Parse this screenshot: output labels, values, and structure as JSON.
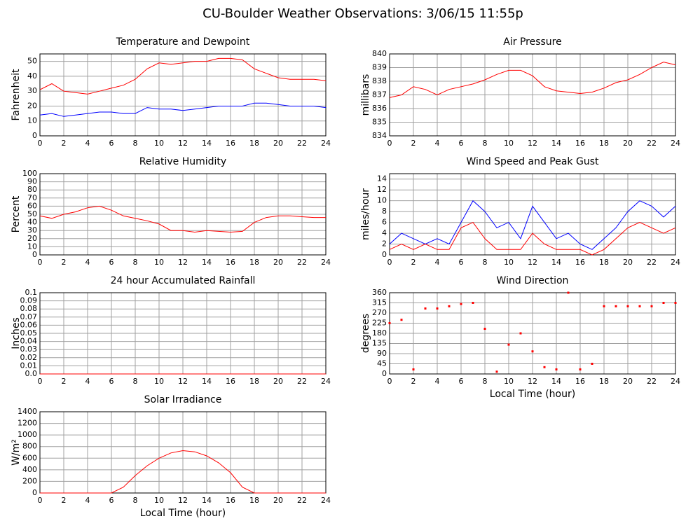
{
  "title": "CU-Boulder Weather Observations: 3/06/15 11:55p",
  "chart_data": [
    {
      "type": "line",
      "title": "Temperature and Dewpoint",
      "ylabel": "Fahrenheit",
      "x": [
        0,
        1,
        2,
        3,
        4,
        5,
        6,
        7,
        8,
        9,
        10,
        11,
        12,
        13,
        14,
        15,
        16,
        17,
        18,
        19,
        20,
        21,
        22,
        23,
        24
      ],
      "xlim": [
        0,
        24
      ],
      "xticks": [
        0,
        2,
        4,
        6,
        8,
        10,
        12,
        14,
        16,
        18,
        20,
        22,
        24
      ],
      "ylim": [
        0,
        55
      ],
      "yticks": [
        0,
        10,
        20,
        30,
        40,
        50
      ],
      "grid": true,
      "series": [
        {
          "name": "Temperature",
          "color": "#ff0000",
          "values": [
            31,
            35,
            30,
            29,
            28,
            30,
            32,
            34,
            38,
            45,
            49,
            48,
            49,
            50,
            50,
            52,
            52,
            51,
            45,
            42,
            39,
            38,
            38,
            38,
            37
          ]
        },
        {
          "name": "Dewpoint",
          "color": "#0000ff",
          "values": [
            14,
            15,
            13,
            14,
            15,
            16,
            16,
            15,
            15,
            19,
            18,
            18,
            17,
            18,
            19,
            20,
            20,
            20,
            22,
            22,
            21,
            20,
            20,
            20,
            19
          ]
        }
      ]
    },
    {
      "type": "line",
      "title": "Air Pressure",
      "ylabel": "millibars",
      "x": [
        0,
        1,
        2,
        3,
        4,
        5,
        6,
        7,
        8,
        9,
        10,
        11,
        12,
        13,
        14,
        15,
        16,
        17,
        18,
        19,
        20,
        21,
        22,
        23,
        24
      ],
      "xlim": [
        0,
        24
      ],
      "xticks": [
        0,
        2,
        4,
        6,
        8,
        10,
        12,
        14,
        16,
        18,
        20,
        22,
        24
      ],
      "ylim": [
        834,
        840
      ],
      "yticks": [
        834,
        835,
        836,
        837,
        838,
        839,
        840
      ],
      "grid": true,
      "series": [
        {
          "name": "Pressure",
          "color": "#ff0000",
          "values": [
            836.8,
            837.0,
            837.6,
            837.4,
            837.0,
            837.4,
            837.6,
            837.8,
            838.1,
            838.5,
            838.8,
            838.8,
            838.4,
            837.6,
            837.3,
            837.2,
            837.1,
            837.2,
            837.5,
            837.9,
            838.1,
            838.5,
            839.0,
            839.4,
            839.2
          ]
        }
      ]
    },
    {
      "type": "line",
      "title": "Relative Humidity",
      "ylabel": "Percent",
      "x": [
        0,
        1,
        2,
        3,
        4,
        5,
        6,
        7,
        8,
        9,
        10,
        11,
        12,
        13,
        14,
        15,
        16,
        17,
        18,
        19,
        20,
        21,
        22,
        23,
        24
      ],
      "xlim": [
        0,
        24
      ],
      "xticks": [
        0,
        2,
        4,
        6,
        8,
        10,
        12,
        14,
        16,
        18,
        20,
        22,
        24
      ],
      "ylim": [
        0,
        100
      ],
      "yticks": [
        0,
        10,
        20,
        30,
        40,
        50,
        60,
        70,
        80,
        90,
        100
      ],
      "grid": true,
      "series": [
        {
          "name": "Humidity",
          "color": "#ff0000",
          "values": [
            48,
            45,
            50,
            53,
            58,
            60,
            55,
            48,
            45,
            42,
            38,
            30,
            30,
            28,
            30,
            29,
            28,
            29,
            40,
            46,
            48,
            48,
            47,
            46,
            46
          ]
        }
      ]
    },
    {
      "type": "line",
      "title": "Wind Speed and Peak Gust",
      "ylabel": "miles/hour",
      "x": [
        0,
        1,
        2,
        3,
        4,
        5,
        6,
        7,
        8,
        9,
        10,
        11,
        12,
        13,
        14,
        15,
        16,
        17,
        18,
        19,
        20,
        21,
        22,
        23,
        24
      ],
      "xlim": [
        0,
        24
      ],
      "xticks": [
        0,
        2,
        4,
        6,
        8,
        10,
        12,
        14,
        16,
        18,
        20,
        22,
        24
      ],
      "ylim": [
        0,
        15
      ],
      "yticks": [
        0,
        2,
        4,
        6,
        8,
        10,
        12,
        14
      ],
      "grid": true,
      "series": [
        {
          "name": "Peak Gust",
          "color": "#0000ff",
          "values": [
            2,
            4,
            3,
            2,
            3,
            2,
            6,
            10,
            8,
            5,
            6,
            3,
            9,
            6,
            3,
            4,
            2,
            1,
            3,
            5,
            8,
            10,
            9,
            7,
            9
          ]
        },
        {
          "name": "Wind Speed",
          "color": "#ff0000",
          "values": [
            1,
            2,
            1,
            2,
            1,
            1,
            5,
            6,
            3,
            1,
            1,
            1,
            4,
            2,
            1,
            1,
            1,
            0,
            1,
            3,
            5,
            6,
            5,
            4,
            5
          ]
        }
      ]
    },
    {
      "type": "line",
      "title": "24 hour Accumulated Rainfall",
      "ylabel": "Inches",
      "x": [
        0,
        1,
        2,
        3,
        4,
        5,
        6,
        7,
        8,
        9,
        10,
        11,
        12,
        13,
        14,
        15,
        16,
        17,
        18,
        19,
        20,
        21,
        22,
        23,
        24
      ],
      "xlim": [
        0,
        24
      ],
      "xticks": [
        0,
        2,
        4,
        6,
        8,
        10,
        12,
        14,
        16,
        18,
        20,
        22,
        24
      ],
      "ylim": [
        0,
        0.1
      ],
      "yticks": [
        {
          "value": 0,
          "label": "0.0"
        },
        0.01,
        0.02,
        0.03,
        0.04,
        0.05,
        0.06,
        0.07,
        0.08,
        0.09,
        0.1
      ],
      "grid": true,
      "series": [
        {
          "name": "Rainfall",
          "color": "#ff0000",
          "values": [
            0,
            0,
            0,
            0,
            0,
            0,
            0,
            0,
            0,
            0,
            0,
            0,
            0,
            0,
            0,
            0,
            0,
            0,
            0,
            0,
            0,
            0,
            0,
            0,
            0
          ]
        }
      ]
    },
    {
      "type": "scatter",
      "title": "Wind Direction",
      "ylabel": "degrees",
      "xlabel": "Local Time (hour)",
      "x": [
        0,
        1,
        2,
        3,
        4,
        5,
        6,
        7,
        8,
        9,
        10,
        11,
        12,
        13,
        14,
        15,
        16,
        17,
        18,
        19,
        20,
        21,
        22,
        23,
        24
      ],
      "xlim": [
        0,
        24
      ],
      "xticks": [
        0,
        2,
        4,
        6,
        8,
        10,
        12,
        14,
        16,
        18,
        20,
        22,
        24
      ],
      "ylim": [
        0,
        360
      ],
      "yticks": [
        0,
        45,
        90,
        135,
        180,
        225,
        270,
        315,
        360
      ],
      "grid": true,
      "series": [
        {
          "name": "Direction",
          "color": "#ff0000",
          "values": [
            225,
            240,
            20,
            290,
            290,
            300,
            310,
            315,
            200,
            10,
            130,
            180,
            100,
            30,
            20,
            360,
            20,
            45,
            300,
            300,
            300,
            300,
            300,
            315,
            315
          ]
        }
      ]
    },
    {
      "type": "line",
      "title": "Solar Irradiance",
      "ylabel": "W/m²",
      "xlabel": "Local Time (hour)",
      "x": [
        0,
        1,
        2,
        3,
        4,
        5,
        6,
        7,
        8,
        9,
        10,
        11,
        12,
        13,
        14,
        15,
        16,
        17,
        18,
        19,
        20,
        21,
        22,
        23,
        24
      ],
      "xlim": [
        0,
        24
      ],
      "xticks": [
        0,
        2,
        4,
        6,
        8,
        10,
        12,
        14,
        16,
        18,
        20,
        22,
        24
      ],
      "ylim": [
        0,
        1400
      ],
      "yticks": [
        0,
        200,
        400,
        600,
        800,
        1000,
        1200,
        1400
      ],
      "grid": true,
      "series": [
        {
          "name": "Irradiance",
          "color": "#ff0000",
          "values": [
            0,
            0,
            0,
            0,
            0,
            0,
            0,
            100,
            300,
            470,
            600,
            690,
            730,
            710,
            640,
            520,
            350,
            100,
            0,
            0,
            0,
            0,
            0,
            0,
            0
          ]
        }
      ]
    }
  ]
}
